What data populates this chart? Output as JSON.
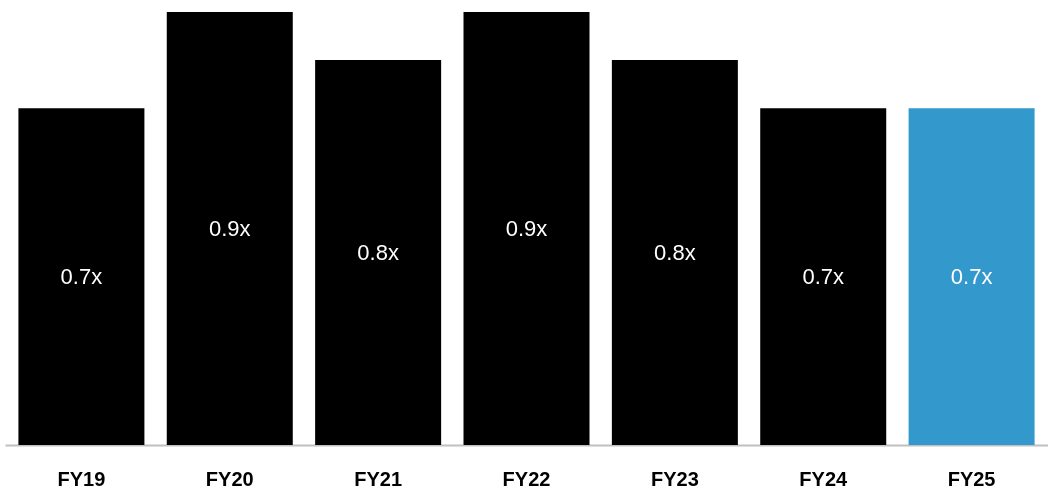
{
  "chart_data": {
    "type": "bar",
    "categories": [
      "FY19",
      "FY20",
      "FY21",
      "FY22",
      "FY23",
      "FY24",
      "FY25"
    ],
    "values": [
      0.7,
      0.9,
      0.8,
      0.9,
      0.8,
      0.7,
      0.7
    ],
    "colors": [
      "#000000",
      "#000000",
      "#000000",
      "#000000",
      "#000000",
      "#000000",
      "#3399cc"
    ],
    "value_labels": [
      "0.7x",
      "0.9x",
      "0.8x",
      "0.9x",
      "0.8x",
      "0.7x",
      "0.7x"
    ],
    "grid": false
  }
}
